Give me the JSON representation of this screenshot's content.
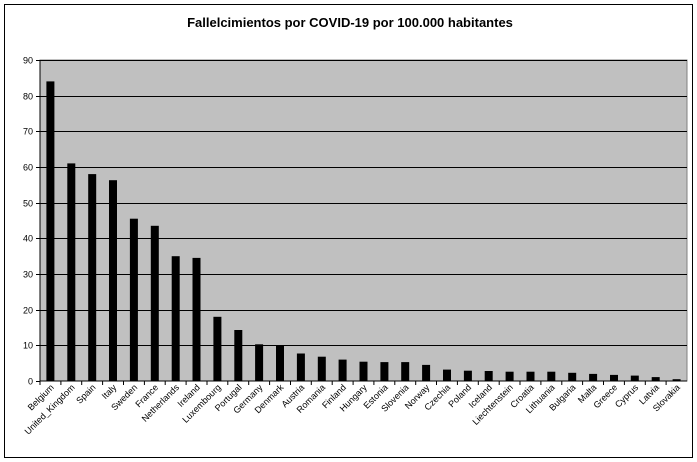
{
  "chart_data": {
    "type": "bar",
    "title": "Fallelcimientos por COVID-19 por 100.000 habitantes",
    "xlabel": "",
    "ylabel": "",
    "ylim": [
      0,
      90
    ],
    "yticks": [
      0,
      10,
      20,
      30,
      40,
      50,
      60,
      70,
      80,
      90
    ],
    "grid": true,
    "legend": "none",
    "categories": [
      "Belgium",
      "United_Kingdom",
      "Spain",
      "Italy",
      "Sweden",
      "France",
      "Netherlands",
      "Ireland",
      "Luxembourg",
      "Portugal",
      "Germany",
      "Denmark",
      "Austria",
      "Romania",
      "Finland",
      "Hungary",
      "Estonia",
      "Slovenia",
      "Norway",
      "Czechia",
      "Poland",
      "Iceland",
      "Liechtenstein",
      "Croatia",
      "Lithuania",
      "Bulgaria",
      "Malta",
      "Greece",
      "Cyprus",
      "Latvia",
      "Slovakia"
    ],
    "values": [
      84,
      61,
      58,
      56.3,
      45.5,
      43.5,
      35,
      34.5,
      18,
      14.3,
      10.3,
      10,
      7.7,
      6.8,
      6,
      5.4,
      5.3,
      5.3,
      4.5,
      3.2,
      2.9,
      2.8,
      2.6,
      2.6,
      2.6,
      2.3,
      2,
      1.7,
      1.5,
      1.1,
      0.5
    ],
    "colors": {
      "plot_background": "#c0c0c0",
      "bar": "#000000",
      "grid": "#000000"
    }
  }
}
